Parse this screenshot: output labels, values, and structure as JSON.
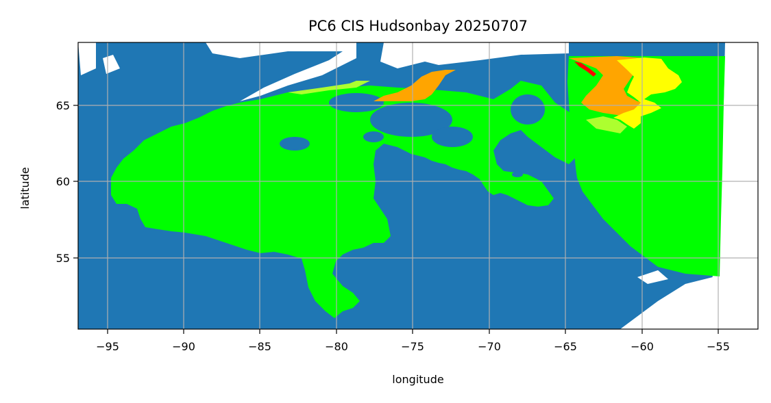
{
  "title": "PC6 CIS Hudsonbay 20250707",
  "xlabel": "longitude",
  "ylabel": "latitude",
  "x_ticks": [
    "−95",
    "−90",
    "−85",
    "−80",
    "−75",
    "−70",
    "−65",
    "−60",
    "−55"
  ],
  "y_ticks": [
    "65",
    "60",
    "55"
  ],
  "colors": {
    "land": "#1f77b4",
    "ice_green": "#00ff00",
    "ice_lightgreen": "#adff2f",
    "ice_yellow": "#ffff00",
    "ice_orange": "#ffa500",
    "ice_red": "#ff0000",
    "grid": "#b0b0b0",
    "nodata": "#ffffff"
  },
  "chart_data": {
    "type": "map",
    "title": "PC6 CIS Hudsonbay 20250707",
    "xlabel": "longitude",
    "ylabel": "latitude",
    "xlim": [
      -97,
      -52.5
    ],
    "ylim": [
      50.2,
      69
    ],
    "x_ticks": [
      -95,
      -90,
      -85,
      -80,
      -75,
      -70,
      -65,
      -60,
      -55
    ],
    "y_ticks": [
      55,
      60,
      65
    ],
    "grid": true
  }
}
